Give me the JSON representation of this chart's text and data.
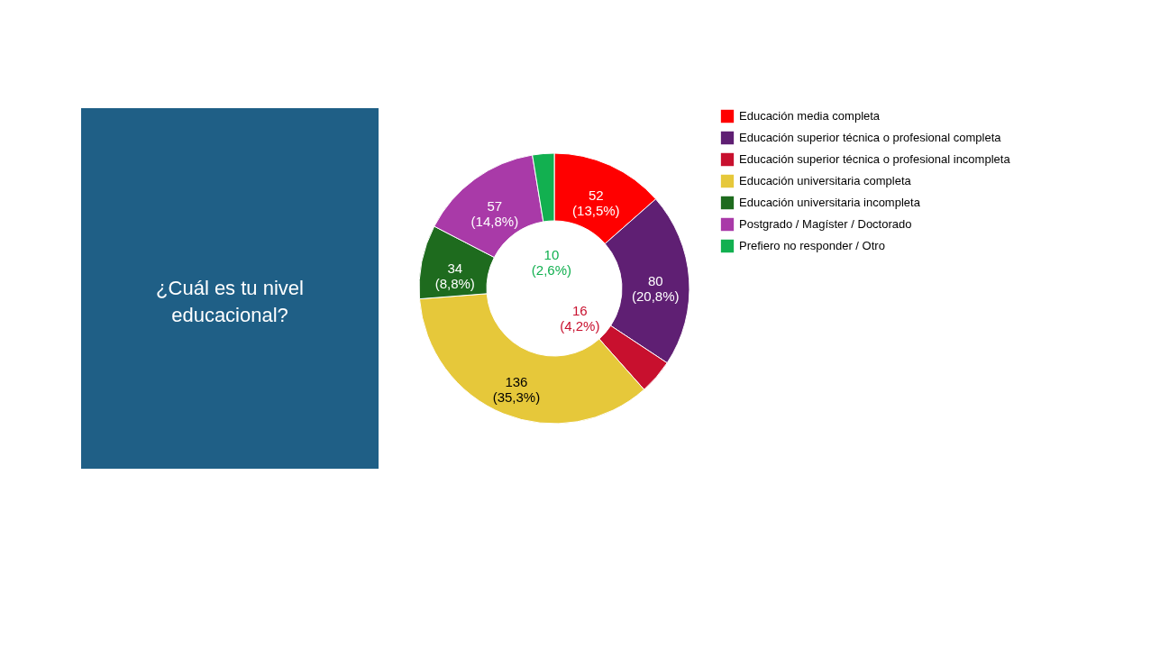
{
  "chart_data": {
    "type": "donut",
    "title": "¿Cuál es tu nivel educacional?",
    "categories": [
      "Educación media completa",
      "Educación superior técnica o profesional completa",
      "Educación superior técnica o profesional incompleta",
      "Educación universitaria completa",
      "Educación universitaria incompleta",
      "Postgrado / Magíster / Doctorado",
      "Prefiero no responder / Otro"
    ],
    "values": [
      52,
      80,
      16,
      136,
      34,
      57,
      10
    ],
    "colors": [
      "#ff0000",
      "#5f1f73",
      "#c8102e",
      "#e6c83a",
      "#1e6b1e",
      "#a93aa8",
      "#12b050"
    ],
    "value_labels": [
      "52\n(13,5%)",
      "80\n(20,8%)",
      "16\n(4,2%)",
      "136\n(35,3%)",
      "34\n(8,8%)",
      "57\n(14,8%)",
      "10\n(2,6%)"
    ],
    "legend": "right"
  }
}
